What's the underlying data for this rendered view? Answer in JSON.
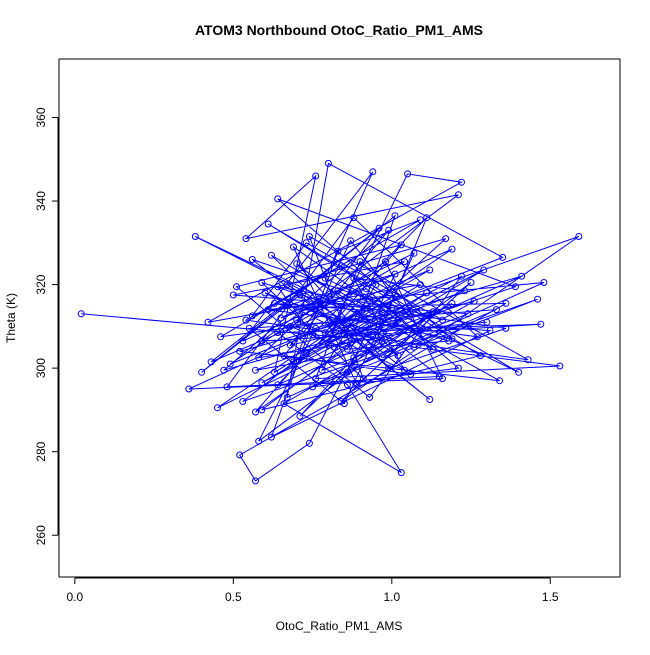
{
  "chart_data": {
    "type": "line",
    "title": "ATOM3 Northbound OtoC_Ratio_PM1_AMS",
    "xlabel": "OtoC_Ratio_PM1_AMS",
    "ylabel": "Theta (K)",
    "xlim": [
      -0.05,
      1.72
    ],
    "ylim": [
      250,
      374
    ],
    "x_ticks": [
      0.0,
      0.5,
      1.0,
      1.5
    ],
    "x_tick_labels": [
      "0.0",
      "0.5",
      "1.0",
      "1.5"
    ],
    "y_ticks": [
      260,
      280,
      300,
      320,
      340,
      360
    ],
    "y_tick_labels": [
      "260",
      "280",
      "300",
      "320",
      "340",
      "360"
    ],
    "grid": false,
    "legend": "none",
    "series_color": "#0000ff",
    "marker": "open-circle",
    "points": [
      [
        0.02,
        313.0
      ],
      [
        0.97,
        306.5
      ],
      [
        0.72,
        314.5
      ],
      [
        1.36,
        315.5
      ],
      [
        0.52,
        279.2
      ],
      [
        0.57,
        273.0
      ],
      [
        0.74,
        282.0
      ],
      [
        0.88,
        302.5
      ],
      [
        1.19,
        315.5
      ],
      [
        0.66,
        291.5
      ],
      [
        1.03,
        275.0
      ],
      [
        0.86,
        296.0
      ],
      [
        0.64,
        308.5
      ],
      [
        1.47,
        310.5
      ],
      [
        0.59,
        306.5
      ],
      [
        1.21,
        341.5
      ],
      [
        0.54,
        331.0
      ],
      [
        0.76,
        346.0
      ],
      [
        0.63,
        299.0
      ],
      [
        1.09,
        320.0
      ],
      [
        0.42,
        311.0
      ],
      [
        1.22,
        344.5
      ],
      [
        1.05,
        346.5
      ],
      [
        0.82,
        311.0
      ],
      [
        0.36,
        295.0
      ],
      [
        1.16,
        297.5
      ],
      [
        0.98,
        325.5
      ],
      [
        0.49,
        301.0
      ],
      [
        1.35,
        326.5
      ],
      [
        0.8,
        349.0
      ],
      [
        0.67,
        293.0
      ],
      [
        1.48,
        320.5
      ],
      [
        0.93,
        316.5
      ],
      [
        0.56,
        326.0
      ],
      [
        1.12,
        292.5
      ],
      [
        0.71,
        317.5
      ],
      [
        0.4,
        299.0
      ],
      [
        1.01,
        336.5
      ],
      [
        0.87,
        306.0
      ],
      [
        0.59,
        290.0
      ],
      [
        1.28,
        303.0
      ],
      [
        0.61,
        334.5
      ],
      [
        1.4,
        299.0
      ],
      [
        0.79,
        321.5
      ],
      [
        0.94,
        347.0
      ],
      [
        0.53,
        306.5
      ],
      [
        1.19,
        328.5
      ],
      [
        0.45,
        290.5
      ],
      [
        1.02,
        311.5
      ],
      [
        0.69,
        329.0
      ],
      [
        0.89,
        296.0
      ],
      [
        1.25,
        320.5
      ],
      [
        0.58,
        282.5
      ],
      [
        0.76,
        309.5
      ],
      [
        1.59,
        331.5
      ],
      [
        0.84,
        292.0
      ],
      [
        1.13,
        313.5
      ],
      [
        0.47,
        299.5
      ],
      [
        0.99,
        333.0
      ],
      [
        0.66,
        303.0
      ],
      [
        1.06,
        298.5
      ],
      [
        0.72,
        318.5
      ],
      [
        0.38,
        331.5
      ],
      [
        0.96,
        310.5
      ],
      [
        1.31,
        309.0
      ],
      [
        0.62,
        283.5
      ],
      [
        0.83,
        328.0
      ],
      [
        1.09,
        335.5
      ],
      [
        0.54,
        311.5
      ],
      [
        1.43,
        302.0
      ],
      [
        0.74,
        331.5
      ],
      [
        0.91,
        297.5
      ],
      [
        0.59,
        320.5
      ],
      [
        1.18,
        306.5
      ],
      [
        0.86,
        304.5
      ],
      [
        0.68,
        310.0
      ],
      [
        1.04,
        325.5
      ],
      [
        0.5,
        317.5
      ],
      [
        1.24,
        313.0
      ],
      [
        0.78,
        299.5
      ],
      [
        0.95,
        320.0
      ],
      [
        0.64,
        340.5
      ],
      [
        1.39,
        319.5
      ],
      [
        0.82,
        305.0
      ],
      [
        1.11,
        318.0
      ],
      [
        0.57,
        289.5
      ],
      [
        0.73,
        303.5
      ],
      [
        1.01,
        317.5
      ],
      [
        0.61,
        314.0
      ],
      [
        1.27,
        307.5
      ],
      [
        0.88,
        336.0
      ],
      [
        0.48,
        295.5
      ],
      [
        1.15,
        298.0
      ],
      [
        0.7,
        325.0
      ],
      [
        0.97,
        302.5
      ],
      [
        1.33,
        314.0
      ],
      [
        0.55,
        309.5
      ],
      [
        0.85,
        291.5
      ],
      [
        1.07,
        327.5
      ],
      [
        0.65,
        312.0
      ],
      [
        0.92,
        319.0
      ],
      [
        1.21,
        300.0
      ],
      [
        0.75,
        295.5
      ],
      [
        1.46,
        316.5
      ],
      [
        0.53,
        292.0
      ],
      [
        0.89,
        313.0
      ],
      [
        1.02,
        303.0
      ],
      [
        0.67,
        320.0
      ],
      [
        1.17,
        331.0
      ],
      [
        0.8,
        305.5
      ],
      [
        0.59,
        296.5
      ],
      [
        1.29,
        323.5
      ],
      [
        0.94,
        307.5
      ],
      [
        0.71,
        288.5
      ],
      [
        1.05,
        313.5
      ],
      [
        0.46,
        307.5
      ],
      [
        0.84,
        324.5
      ],
      [
        1.13,
        304.5
      ],
      [
        0.62,
        327.0
      ],
      [
        0.99,
        300.0
      ],
      [
        1.36,
        309.5
      ],
      [
        0.77,
        316.0
      ],
      [
        0.58,
        302.5
      ],
      [
        1.09,
        309.0
      ],
      [
        0.87,
        330.5
      ],
      [
        0.69,
        301.5
      ],
      [
        1.22,
        322.0
      ],
      [
        0.93,
        293.0
      ],
      [
        0.51,
        319.5
      ],
      [
        1.03,
        329.5
      ],
      [
        0.79,
        308.5
      ],
      [
        1.41,
        322.0
      ],
      [
        0.64,
        296.0
      ],
      [
        0.91,
        317.0
      ],
      [
        1.16,
        311.5
      ],
      [
        0.73,
        330.0
      ],
      [
        0.56,
        312.5
      ],
      [
        1.01,
        322.5
      ],
      [
        0.86,
        299.0
      ],
      [
        1.26,
        316.0
      ],
      [
        0.68,
        305.5
      ],
      [
        0.96,
        333.5
      ],
      [
        0.43,
        301.5
      ],
      [
        1.12,
        323.5
      ],
      [
        0.81,
        310.0
      ],
      [
        0.6,
        318.0
      ],
      [
        1.07,
        305.0
      ],
      [
        1.53,
        300.5
      ],
      [
        0.76,
        297.5
      ],
      [
        0.9,
        325.5
      ],
      [
        1.19,
        307.0
      ],
      [
        0.63,
        315.5
      ],
      [
        0.97,
        313.5
      ],
      [
        0.52,
        304.0
      ],
      [
        1.34,
        297.0
      ],
      [
        0.83,
        318.5
      ],
      [
        0.7,
        311.5
      ],
      [
        1.04,
        299.5
      ],
      [
        0.88,
        321.5
      ],
      [
        1.23,
        318.5
      ],
      [
        0.57,
        299.5
      ],
      [
        0.94,
        304.5
      ],
      [
        1.11,
        336.0
      ],
      [
        0.75,
        308.0
      ],
      [
        0.64,
        319.5
      ],
      [
        1.0,
        314.5
      ],
      [
        0.85,
        308.0
      ],
      [
        1.3,
        311.0
      ]
    ]
  }
}
